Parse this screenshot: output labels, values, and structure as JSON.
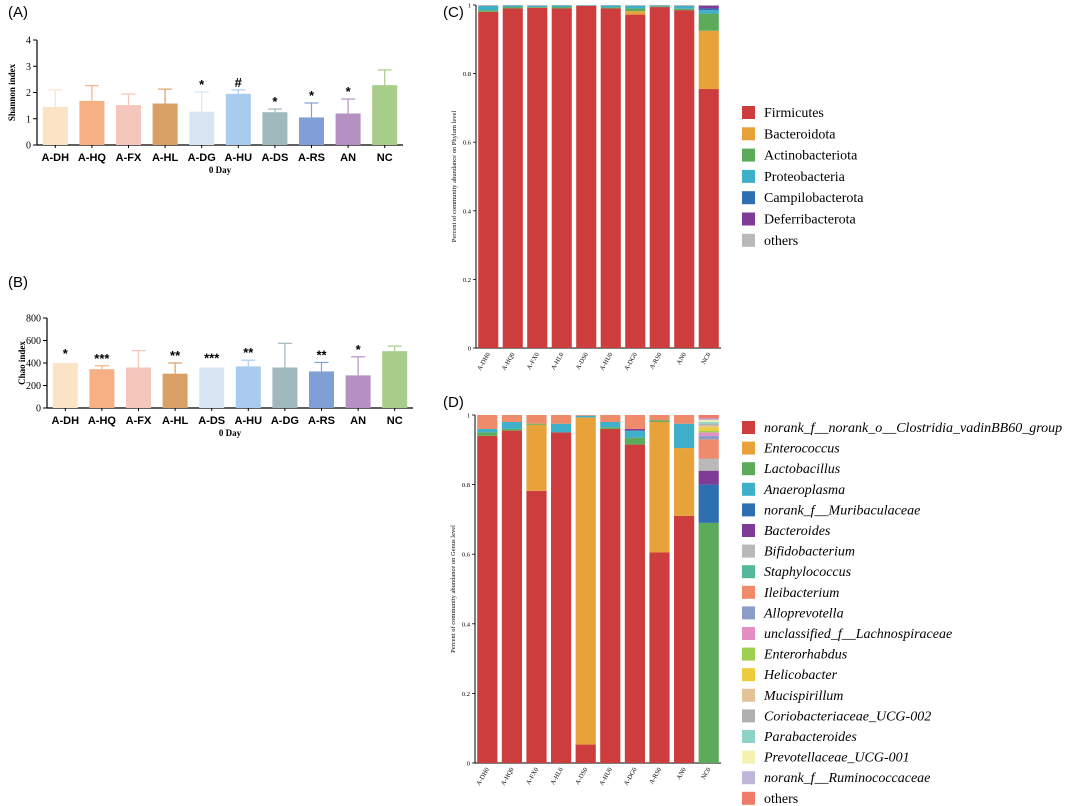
{
  "chart_data": [
    {
      "id": "A",
      "type": "bar",
      "panel_label": "(A)",
      "title": "",
      "xlabel": "0 Day",
      "ylabel": "Shannon index",
      "ylim": [
        0,
        4
      ],
      "yticks": [
        "0",
        "1",
        "2",
        "3",
        "4"
      ],
      "categories": [
        "A-DH",
        "A-HQ",
        "A-FX",
        "A-HL",
        "A-DG",
        "A-HU",
        "A-DS",
        "A-RS",
        "AN",
        "NC"
      ],
      "values": [
        1.45,
        1.68,
        1.52,
        1.58,
        1.27,
        1.95,
        1.25,
        1.05,
        1.2,
        2.28
      ],
      "error": [
        0.65,
        0.58,
        0.42,
        0.55,
        0.75,
        0.15,
        0.12,
        0.55,
        0.55,
        0.58
      ],
      "significance": [
        "",
        "",
        "",
        "",
        "*",
        "#",
        "*",
        "*",
        "*",
        ""
      ],
      "colors": [
        "#fbe3c6",
        "#f6b084",
        "#f5c6bb",
        "#d9a066",
        "#d8e6f3",
        "#a9cbee",
        "#9fb9bd",
        "#7f9fd6",
        "#b590c2",
        "#a8cc8a"
      ]
    },
    {
      "id": "B",
      "type": "bar",
      "panel_label": "(B)",
      "title": "",
      "xlabel": "0 Day",
      "ylabel": "Chao index",
      "ylim": [
        0,
        800
      ],
      "yticks": [
        "0",
        "200",
        "400",
        "600",
        "800"
      ],
      "categories": [
        "A-DH",
        "A-HQ",
        "A-FX",
        "A-HL",
        "A-DS",
        "A-HU",
        "A-DG",
        "A-RS",
        "AN",
        "NC"
      ],
      "values": [
        400,
        345,
        360,
        305,
        360,
        370,
        360,
        325,
        290,
        505
      ],
      "error": [
        0,
        30,
        150,
        95,
        0,
        55,
        215,
        80,
        165,
        45
      ],
      "significance": [
        "*",
        "***",
        "",
        "**",
        "***",
        "**",
        "",
        "**",
        "*",
        ""
      ],
      "colors": [
        "#fbe3c6",
        "#f6b084",
        "#f5c6bb",
        "#d9a066",
        "#d8e6f3",
        "#a9cbee",
        "#9fb9bd",
        "#7f9fd6",
        "#b590c2",
        "#a8cc8a"
      ]
    },
    {
      "id": "C",
      "type": "stacked_bar",
      "panel_label": "(C)",
      "title": "",
      "ylabel": "Percent of community abundance on Phylum level",
      "ylim": [
        0,
        1
      ],
      "yticks": [
        "0",
        "0.2",
        "0.4",
        "0.6",
        "0.8",
        "1"
      ],
      "categories": [
        "A-DH0",
        "A-HQ0",
        "A-FX0",
        "A-HL0",
        "A-DS0",
        "A-HU0",
        "A-DG0",
        "A-RS0",
        "AN0",
        "NC0"
      ],
      "series": [
        {
          "name": "Firmicutes",
          "color": "#cd3d3d",
          "values": [
            0.98,
            0.99,
            0.992,
            0.99,
            0.998,
            0.99,
            0.972,
            0.994,
            0.985,
            0.755
          ]
        },
        {
          "name": "Bacteroidota",
          "color": "#e8a23a",
          "values": [
            0.0,
            0.0,
            0.0,
            0.0,
            0.0,
            0.0,
            0.01,
            0.0,
            0.0,
            0.17
          ]
        },
        {
          "name": "Actinobacteriota",
          "color": "#5bab5b",
          "values": [
            0.005,
            0.004,
            0.002,
            0.004,
            0.0,
            0.003,
            0.008,
            0.002,
            0.004,
            0.05
          ]
        },
        {
          "name": "Proteobacteria",
          "color": "#3fb0c9",
          "values": [
            0.012,
            0.005,
            0.004,
            0.005,
            0.001,
            0.006,
            0.008,
            0.003,
            0.008,
            0.01
          ]
        },
        {
          "name": "Campilobacterota",
          "color": "#2d6fb0",
          "values": [
            0.0,
            0.0,
            0.0,
            0.0,
            0.0,
            0.0,
            0.0,
            0.0,
            0.0,
            0.005
          ]
        },
        {
          "name": "Deferribacterota",
          "color": "#7e3c96",
          "values": [
            0.0,
            0.0,
            0.0,
            0.0,
            0.0,
            0.0,
            0.0,
            0.0,
            0.0,
            0.008
          ]
        },
        {
          "name": "others",
          "color": "#b9b9b9",
          "values": [
            0.003,
            0.001,
            0.002,
            0.001,
            0.001,
            0.001,
            0.002,
            0.001,
            0.003,
            0.002
          ]
        }
      ]
    },
    {
      "id": "D",
      "type": "stacked_bar",
      "panel_label": "(D)",
      "title": "",
      "ylabel": "Percent of community abundance on Genus level",
      "ylim": [
        0,
        1
      ],
      "yticks": [
        "0",
        "0.2",
        "0.4",
        "0.6",
        "0.8",
        "1"
      ],
      "categories": [
        "A-DH0",
        "A-HQ0",
        "A-FX0",
        "A-HL0",
        "A-DS0",
        "A-HU0",
        "A-DG0",
        "A-RS0",
        "AN0",
        "NC0"
      ],
      "series": [
        {
          "name": "norank_f__norank_o__Clostridia_vadinBB60_group",
          "color": "#cd3d3d",
          "values": [
            0.94,
            0.955,
            0.782,
            0.95,
            0.053,
            0.96,
            0.915,
            0.605,
            0.71,
            0.0
          ]
        },
        {
          "name": "Enterococcus",
          "color": "#e8a23a",
          "values": [
            0.0,
            0.0,
            0.19,
            0.0,
            0.94,
            0.0,
            0.0,
            0.375,
            0.195,
            0.0
          ]
        },
        {
          "name": "Lactobacillus",
          "color": "#5bab5b",
          "values": [
            0.01,
            0.005,
            0.003,
            0.0,
            0.0,
            0.005,
            0.02,
            0.005,
            0.0,
            0.69
          ]
        },
        {
          "name": "Anaeroplasma",
          "color": "#3fb0c9",
          "values": [
            0.01,
            0.02,
            0.0,
            0.025,
            0.005,
            0.015,
            0.02,
            0.0,
            0.07,
            0.0
          ]
        },
        {
          "name": "norank_f__Muribaculaceae",
          "color": "#2d6fb0",
          "values": [
            0.0,
            0.0,
            0.0,
            0.0,
            0.0,
            0.0,
            0.0,
            0.0,
            0.0,
            0.11
          ]
        },
        {
          "name": "Bacteroides",
          "color": "#7e3c96",
          "values": [
            0.0,
            0.0,
            0.0,
            0.0,
            0.0,
            0.0,
            0.005,
            0.0,
            0.0,
            0.04
          ]
        },
        {
          "name": "Bifidobacterium",
          "color": "#b9b9b9",
          "values": [
            0.0,
            0.0,
            0.0,
            0.0,
            0.0,
            0.0,
            0.0,
            0.0,
            0.0,
            0.035
          ]
        },
        {
          "name": "Staphylococcus",
          "color": "#55b89a",
          "values": [
            0.0,
            0.0,
            0.0,
            0.0,
            0.0,
            0.0,
            0.0,
            0.0,
            0.0,
            0.0
          ]
        },
        {
          "name": "Ileibacterium",
          "color": "#ef8a6a",
          "values": [
            0.04,
            0.02,
            0.025,
            0.025,
            0.002,
            0.02,
            0.04,
            0.015,
            0.025,
            0.055
          ]
        },
        {
          "name": "Alloprevotella",
          "color": "#8a9ec9",
          "values": [
            0.0,
            0.0,
            0.0,
            0.0,
            0.0,
            0.0,
            0.0,
            0.0,
            0.0,
            0.01
          ]
        },
        {
          "name": "unclassified_f__Lachnospiraceae",
          "color": "#e38ec4",
          "values": [
            0.0,
            0.0,
            0.0,
            0.0,
            0.0,
            0.0,
            0.0,
            0.0,
            0.0,
            0.01
          ]
        },
        {
          "name": "Enterorhabdus",
          "color": "#9fcf4e",
          "values": [
            0.0,
            0.0,
            0.0,
            0.0,
            0.0,
            0.0,
            0.0,
            0.0,
            0.0,
            0.005
          ]
        },
        {
          "name": "Helicobacter",
          "color": "#eecb3a",
          "values": [
            0.0,
            0.0,
            0.0,
            0.0,
            0.0,
            0.0,
            0.0,
            0.0,
            0.0,
            0.01
          ]
        },
        {
          "name": "Mucispirillum",
          "color": "#e3c499",
          "values": [
            0.0,
            0.0,
            0.0,
            0.0,
            0.0,
            0.0,
            0.0,
            0.0,
            0.0,
            0.005
          ]
        },
        {
          "name": "Coriobacteriaceae_UCG-002",
          "color": "#b0b0b0",
          "values": [
            0.0,
            0.0,
            0.0,
            0.0,
            0.0,
            0.0,
            0.0,
            0.0,
            0.0,
            0.005
          ]
        },
        {
          "name": "Parabacteroides",
          "color": "#8dd3c7",
          "values": [
            0.0,
            0.0,
            0.0,
            0.0,
            0.0,
            0.0,
            0.0,
            0.0,
            0.0,
            0.005
          ]
        },
        {
          "name": "Prevotellaceae_UCG-001",
          "color": "#f3f2b0",
          "values": [
            0.0,
            0.0,
            0.0,
            0.0,
            0.0,
            0.0,
            0.0,
            0.0,
            0.0,
            0.005
          ]
        },
        {
          "name": "norank_f__Ruminococcaceae",
          "color": "#bfb6da",
          "values": [
            0.0,
            0.0,
            0.0,
            0.0,
            0.0,
            0.0,
            0.0,
            0.0,
            0.0,
            0.005
          ]
        },
        {
          "name": "others",
          "color": "#ef7b6b",
          "values": [
            0.0,
            0.0,
            0.0,
            0.0,
            0.0,
            0.0,
            0.0,
            0.0,
            0.0,
            0.0
          ]
        }
      ]
    }
  ]
}
